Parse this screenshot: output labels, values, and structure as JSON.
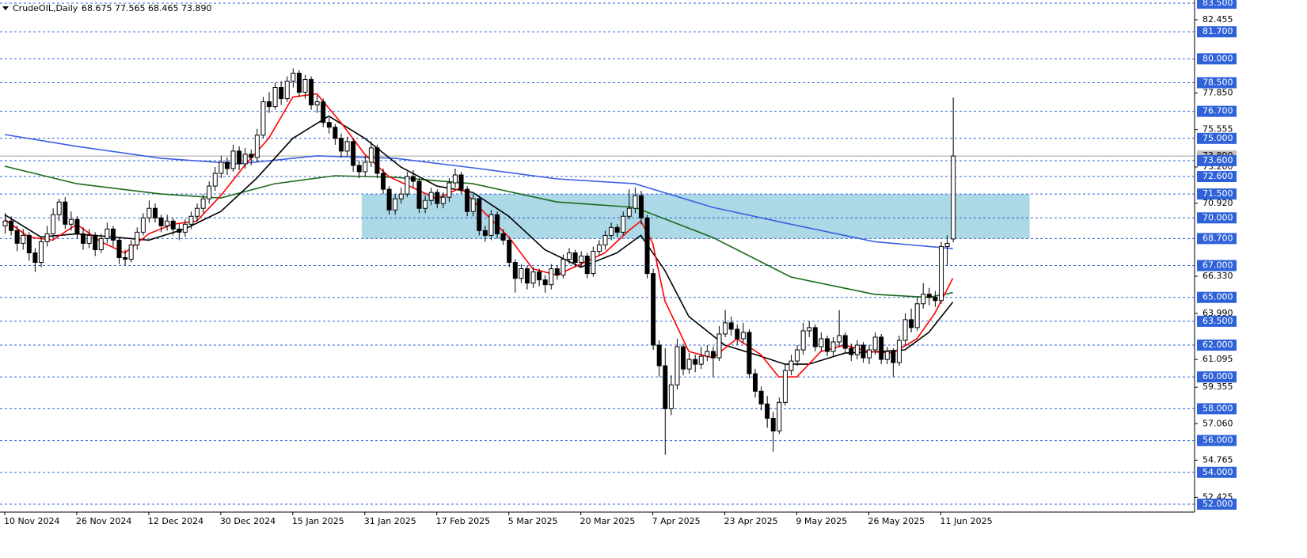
{
  "chart_data": {
    "type": "candlestick",
    "title": "CrudeOIL,Daily",
    "last_labels": [
      "68.675",
      "77.565",
      "68.465",
      "73.890"
    ],
    "ylim": [
      51.5,
      83.7
    ],
    "yticks": [
      {
        "value": 82.455,
        "label": "82.455"
      },
      {
        "value": 77.85,
        "label": "77.850"
      },
      {
        "value": 75.555,
        "label": "75.555"
      },
      {
        "value": 73.2,
        "label": "73.200"
      },
      {
        "value": 70.92,
        "label": "70.920"
      },
      {
        "value": 66.33,
        "label": "66.330"
      },
      {
        "value": 63.99,
        "label": "63.990"
      },
      {
        "value": 61.095,
        "label": "61.095"
      },
      {
        "value": 59.355,
        "label": "59.355"
      },
      {
        "value": 57.06,
        "label": "57.060"
      },
      {
        "value": 54.765,
        "label": "54.765"
      },
      {
        "value": 52.425,
        "label": "52.425"
      }
    ],
    "levels": [
      {
        "value": 83.5,
        "label": "83.500"
      },
      {
        "value": 81.7,
        "label": "81.700"
      },
      {
        "value": 80,
        "label": "80.000"
      },
      {
        "value": 78.5,
        "label": "78.500"
      },
      {
        "value": 76.7,
        "label": "76.700"
      },
      {
        "value": 75,
        "label": "75.000"
      },
      {
        "value": 73.6,
        "label": "73.600"
      },
      {
        "value": 72.6,
        "label": "72.600"
      },
      {
        "value": 71.5,
        "label": "71.500"
      },
      {
        "value": 70,
        "label": "70.000"
      },
      {
        "value": 68.7,
        "label": "68.700"
      },
      {
        "value": 67,
        "label": "67.000"
      },
      {
        "value": 65,
        "label": "65.000"
      },
      {
        "value": 63.5,
        "label": "63.500"
      },
      {
        "value": 62,
        "label": "62.000"
      },
      {
        "value": 60,
        "label": "60.000"
      },
      {
        "value": 58,
        "label": "58.000"
      },
      {
        "value": 56,
        "label": "56.000"
      },
      {
        "value": 54,
        "label": "54.000"
      },
      {
        "value": 52,
        "label": "52.000"
      }
    ],
    "level_color": "#2f62d9",
    "zone": {
      "x": [
        59.5,
        170.8
      ],
      "y": [
        68.7,
        71.5
      ],
      "color": "#add8e6"
    },
    "categories": [
      "10 Nov 2024",
      null,
      null,
      null,
      null,
      null,
      null,
      null,
      null,
      null,
      null,
      null,
      "26 Nov 2024",
      null,
      null,
      null,
      null,
      null,
      null,
      null,
      null,
      null,
      null,
      null,
      "12 Dec 2024",
      null,
      null,
      null,
      null,
      null,
      null,
      null,
      null,
      null,
      null,
      null,
      "30 Dec 2024",
      null,
      null,
      null,
      null,
      null,
      null,
      null,
      null,
      null,
      null,
      null,
      "15 Jan 2025",
      null,
      null,
      null,
      null,
      null,
      null,
      null,
      null,
      null,
      null,
      null,
      "31 Jan 2025",
      null,
      null,
      null,
      null,
      null,
      null,
      null,
      null,
      null,
      null,
      null,
      "17 Feb 2025",
      null,
      null,
      null,
      null,
      null,
      null,
      null,
      null,
      null,
      null,
      null,
      "5 Mar 2025",
      null,
      null,
      null,
      null,
      null,
      null,
      null,
      null,
      null,
      null,
      null,
      "20 Mar 2025",
      null,
      null,
      null,
      null,
      null,
      null,
      null,
      null,
      null,
      null,
      null,
      "7 Apr 2025",
      null,
      null,
      null,
      null,
      null,
      null,
      null,
      null,
      null,
      null,
      null,
      "23 Apr 2025",
      null,
      null,
      null,
      null,
      null,
      null,
      null,
      null,
      null,
      null,
      null,
      "9 May 2025",
      null,
      null,
      null,
      null,
      null,
      null,
      null,
      null,
      null,
      null,
      null,
      "26 May 2025",
      null,
      null,
      null,
      null,
      null,
      null,
      null,
      null,
      null,
      null,
      null,
      "11 Jun 2025",
      null,
      null
    ],
    "ohlc": [
      [
        69.5,
        70.3,
        69.0,
        69.8
      ],
      [
        69.8,
        70.1,
        68.9,
        69.2
      ],
      [
        69.2,
        69.5,
        67.9,
        68.4
      ],
      [
        68.4,
        69.3,
        68.0,
        68.9
      ],
      [
        68.9,
        69.1,
        67.3,
        67.8
      ],
      [
        67.8,
        68.1,
        66.6,
        67.2
      ],
      [
        67.2,
        68.8,
        66.9,
        68.5
      ],
      [
        68.5,
        69.5,
        68.2,
        69.0
      ],
      [
        69.0,
        70.6,
        68.7,
        70.2
      ],
      [
        70.2,
        71.2,
        69.8,
        71.0
      ],
      [
        71.0,
        71.3,
        69.3,
        69.6
      ],
      [
        69.6,
        70.4,
        69.2,
        69.9
      ],
      [
        69.9,
        70.1,
        68.7,
        69.0
      ],
      [
        69.0,
        69.4,
        68.0,
        68.4
      ],
      [
        68.4,
        69.3,
        68.1,
        68.9
      ],
      [
        68.9,
        69.1,
        67.6,
        68.0
      ],
      [
        68.0,
        69.0,
        67.8,
        68.7
      ],
      [
        68.7,
        69.7,
        68.4,
        69.3
      ],
      [
        69.3,
        69.5,
        68.2,
        68.6
      ],
      [
        68.6,
        68.8,
        67.1,
        67.5
      ],
      [
        67.5,
        68.0,
        67.0,
        67.4
      ],
      [
        67.4,
        68.6,
        67.2,
        68.3
      ],
      [
        68.3,
        69.4,
        68.0,
        69.1
      ],
      [
        69.1,
        70.3,
        68.9,
        70.0
      ],
      [
        70.0,
        71.1,
        69.7,
        70.6
      ],
      [
        70.6,
        70.9,
        69.7,
        70.0
      ],
      [
        70.0,
        70.2,
        69.1,
        69.5
      ],
      [
        69.5,
        70.2,
        69.2,
        69.8
      ],
      [
        69.8,
        70.0,
        68.9,
        69.3
      ],
      [
        69.3,
        69.6,
        68.6,
        69.1
      ],
      [
        69.1,
        69.9,
        68.8,
        69.6
      ],
      [
        69.6,
        70.4,
        69.3,
        70.1
      ],
      [
        70.1,
        70.9,
        69.8,
        70.6
      ],
      [
        70.6,
        71.5,
        70.3,
        71.2
      ],
      [
        71.2,
        72.3,
        70.9,
        72.0
      ],
      [
        72.0,
        73.2,
        71.7,
        72.8
      ],
      [
        72.8,
        73.9,
        72.5,
        73.5
      ],
      [
        73.5,
        73.8,
        72.7,
        73.1
      ],
      [
        73.1,
        74.6,
        72.9,
        74.2
      ],
      [
        74.2,
        74.5,
        73.0,
        73.4
      ],
      [
        73.4,
        74.4,
        73.1,
        74.0
      ],
      [
        74.0,
        74.3,
        73.3,
        73.8
      ],
      [
        73.8,
        75.6,
        73.5,
        75.2
      ],
      [
        75.2,
        77.6,
        75.0,
        77.3
      ],
      [
        77.3,
        77.9,
        76.6,
        77.0
      ],
      [
        77.0,
        78.5,
        76.8,
        78.2
      ],
      [
        78.2,
        78.6,
        77.1,
        77.5
      ],
      [
        77.5,
        78.9,
        77.3,
        78.6
      ],
      [
        78.6,
        79.4,
        78.2,
        79.1
      ],
      [
        79.1,
        79.3,
        77.6,
        77.9
      ],
      [
        77.9,
        79.0,
        77.5,
        78.7
      ],
      [
        78.7,
        78.9,
        76.8,
        77.1
      ],
      [
        77.1,
        77.7,
        76.6,
        77.3
      ],
      [
        77.3,
        77.5,
        75.7,
        76.0
      ],
      [
        76.0,
        76.3,
        75.3,
        75.7
      ],
      [
        75.7,
        75.9,
        74.6,
        75.0
      ],
      [
        75.0,
        75.3,
        73.8,
        74.2
      ],
      [
        74.2,
        75.1,
        73.9,
        74.8
      ],
      [
        74.8,
        75.0,
        72.9,
        73.3
      ],
      [
        73.3,
        73.6,
        72.5,
        72.9
      ],
      [
        72.9,
        73.9,
        72.6,
        73.5
      ],
      [
        73.5,
        74.8,
        73.2,
        74.4
      ],
      [
        74.4,
        74.6,
        72.5,
        72.8
      ],
      [
        72.8,
        73.1,
        71.5,
        71.8
      ],
      [
        71.8,
        72.0,
        70.2,
        70.5
      ],
      [
        70.5,
        71.5,
        70.2,
        71.2
      ],
      [
        71.2,
        71.9,
        70.9,
        71.5
      ],
      [
        71.5,
        72.9,
        71.3,
        72.6
      ],
      [
        72.6,
        73.0,
        71.9,
        72.3
      ],
      [
        72.3,
        72.5,
        70.3,
        70.6
      ],
      [
        70.6,
        71.4,
        70.3,
        71.1
      ],
      [
        71.1,
        71.9,
        70.8,
        71.6
      ],
      [
        71.6,
        71.8,
        70.6,
        70.9
      ],
      [
        70.9,
        71.6,
        70.6,
        71.3
      ],
      [
        71.3,
        72.5,
        71.0,
        72.2
      ],
      [
        72.2,
        73.1,
        71.9,
        72.7
      ],
      [
        72.7,
        72.9,
        71.5,
        71.8
      ],
      [
        71.8,
        72.0,
        70.1,
        70.4
      ],
      [
        70.4,
        71.5,
        70.1,
        71.2
      ],
      [
        71.2,
        71.4,
        68.9,
        69.2
      ],
      [
        69.2,
        69.5,
        68.5,
        68.9
      ],
      [
        68.9,
        70.5,
        68.6,
        70.2
      ],
      [
        70.2,
        70.4,
        68.7,
        69.0
      ],
      [
        69.0,
        69.3,
        68.3,
        68.6
      ],
      [
        68.6,
        68.8,
        66.9,
        67.2
      ],
      [
        67.2,
        67.4,
        65.3,
        66.2
      ],
      [
        66.2,
        67.1,
        65.9,
        66.8
      ],
      [
        66.8,
        67.0,
        65.5,
        65.9
      ],
      [
        65.9,
        66.9,
        65.6,
        66.6
      ],
      [
        66.6,
        66.8,
        65.7,
        66.1
      ],
      [
        66.1,
        66.4,
        65.3,
        65.8
      ],
      [
        65.8,
        67.1,
        65.5,
        66.8
      ],
      [
        66.8,
        67.0,
        66.1,
        66.4
      ],
      [
        66.4,
        67.7,
        66.2,
        67.4
      ],
      [
        67.4,
        68.1,
        67.1,
        67.8
      ],
      [
        67.8,
        68.0,
        66.9,
        67.2
      ],
      [
        67.2,
        67.9,
        66.9,
        67.6
      ],
      [
        67.6,
        67.8,
        66.2,
        66.5
      ],
      [
        66.5,
        68.2,
        66.3,
        67.9
      ],
      [
        67.9,
        68.6,
        67.6,
        68.3
      ],
      [
        68.3,
        69.2,
        68.0,
        68.9
      ],
      [
        68.9,
        69.7,
        68.6,
        69.4
      ],
      [
        69.4,
        69.6,
        68.8,
        69.1
      ],
      [
        69.1,
        70.4,
        68.9,
        70.1
      ],
      [
        70.1,
        71.8,
        69.9,
        70.6
      ],
      [
        70.6,
        71.9,
        70.3,
        71.4
      ],
      [
        71.4,
        71.7,
        69.6,
        70.0
      ],
      [
        70.0,
        70.2,
        66.2,
        66.5
      ],
      [
        66.5,
        66.8,
        61.7,
        62.0
      ],
      [
        62.0,
        62.3,
        60.0,
        60.7
      ],
      [
        60.7,
        61.8,
        55.1,
        58.0
      ],
      [
        58.0,
        60.1,
        57.6,
        59.5
      ],
      [
        59.5,
        62.4,
        59.2,
        61.9
      ],
      [
        61.9,
        62.1,
        60.1,
        60.5
      ],
      [
        60.5,
        61.5,
        60.2,
        61.1
      ],
      [
        61.1,
        61.4,
        60.3,
        60.8
      ],
      [
        60.8,
        61.9,
        60.5,
        61.3
      ],
      [
        61.3,
        62.0,
        61.0,
        61.6
      ],
      [
        61.6,
        61.9,
        60.0,
        61.2
      ],
      [
        61.2,
        63.2,
        61.0,
        62.7
      ],
      [
        62.7,
        64.2,
        62.5,
        63.4
      ],
      [
        63.4,
        63.8,
        62.6,
        63.0
      ],
      [
        63.0,
        63.3,
        62.0,
        62.4
      ],
      [
        62.4,
        63.4,
        62.1,
        62.8
      ],
      [
        62.8,
        63.0,
        59.9,
        60.2
      ],
      [
        60.2,
        60.5,
        58.7,
        59.1
      ],
      [
        59.1,
        59.4,
        57.9,
        58.3
      ],
      [
        58.3,
        58.8,
        56.8,
        57.4
      ],
      [
        57.4,
        57.8,
        55.3,
        56.6
      ],
      [
        56.6,
        58.7,
        56.4,
        58.4
      ],
      [
        58.4,
        60.8,
        58.2,
        60.4
      ],
      [
        60.4,
        61.4,
        60.1,
        61.0
      ],
      [
        61.0,
        62.0,
        60.7,
        61.7
      ],
      [
        61.7,
        63.4,
        61.4,
        62.9
      ],
      [
        62.9,
        63.5,
        62.5,
        63.1
      ],
      [
        63.1,
        63.3,
        61.6,
        61.9
      ],
      [
        61.9,
        62.8,
        61.6,
        62.4
      ],
      [
        62.4,
        62.6,
        61.3,
        61.6
      ],
      [
        61.6,
        62.5,
        61.3,
        62.2
      ],
      [
        62.2,
        64.2,
        61.9,
        62.6
      ],
      [
        62.6,
        62.8,
        61.5,
        61.8
      ],
      [
        61.8,
        62.1,
        61.0,
        61.4
      ],
      [
        61.4,
        62.3,
        61.1,
        62.0
      ],
      [
        62.0,
        62.2,
        60.9,
        61.2
      ],
      [
        61.2,
        62.0,
        60.8,
        61.7
      ],
      [
        61.7,
        62.8,
        61.4,
        62.5
      ],
      [
        62.5,
        62.7,
        60.8,
        61.1
      ],
      [
        61.1,
        61.9,
        60.8,
        61.6
      ],
      [
        61.6,
        61.8,
        60.0,
        60.9
      ],
      [
        60.9,
        62.6,
        60.7,
        62.3
      ],
      [
        62.3,
        64.0,
        62.0,
        63.6
      ],
      [
        63.6,
        64.3,
        62.8,
        63.1
      ],
      [
        63.1,
        65.0,
        62.9,
        64.6
      ],
      [
        64.6,
        65.9,
        64.3,
        65.2
      ],
      [
        65.2,
        65.6,
        64.5,
        65.0
      ],
      [
        65.0,
        65.4,
        64.4,
        64.8
      ],
      [
        64.8,
        68.5,
        64.6,
        68.2
      ],
      [
        68.2,
        68.9,
        67.0,
        68.4
      ],
      [
        68.675,
        77.565,
        68.465,
        73.89
      ]
    ],
    "lines": [
      {
        "color": "#3a5fe0",
        "x": [
          0,
          12,
          26,
          39,
          52,
          65,
          78,
          92,
          105,
          118,
          131,
          145,
          158
        ],
        "values": [
          75.24,
          74.5,
          73.75,
          73.4,
          73.9,
          73.75,
          73.15,
          72.45,
          72.15,
          70.66,
          69.6,
          68.5,
          68.07
        ]
      },
      {
        "color": "#1a6b1a",
        "x": [
          0,
          12,
          26,
          36,
          45,
          55,
          65,
          78,
          92,
          105,
          118,
          131,
          145,
          154,
          158
        ],
        "values": [
          73.25,
          72.15,
          71.5,
          71.25,
          72.15,
          72.65,
          72.55,
          72.15,
          71.0,
          70.66,
          68.77,
          66.28,
          65.19,
          65.0,
          65.3
        ]
      },
      {
        "color": "#000000",
        "x": [
          0,
          6,
          12,
          18,
          24,
          30,
          36,
          42,
          48,
          54,
          60,
          66,
          72,
          78,
          84,
          90,
          96,
          102,
          106,
          110,
          114,
          120,
          126,
          130,
          134,
          140,
          146,
          150,
          154,
          158
        ],
        "values": [
          70.2,
          68.8,
          69.0,
          68.8,
          68.6,
          69.3,
          70.4,
          72.5,
          75.0,
          76.4,
          75.0,
          73.2,
          72.0,
          71.6,
          70.1,
          68.0,
          66.9,
          67.8,
          68.9,
          66.7,
          63.8,
          62.0,
          61.3,
          60.8,
          60.8,
          61.5,
          61.6,
          61.7,
          62.8,
          64.7
        ]
      },
      {
        "color": "#ff0000",
        "x": [
          0,
          4,
          8,
          12,
          16,
          20,
          24,
          28,
          32,
          36,
          40,
          44,
          48,
          52,
          56,
          60,
          64,
          68,
          72,
          76,
          80,
          84,
          88,
          92,
          96,
          100,
          104,
          106,
          108,
          110,
          114,
          118,
          122,
          126,
          129,
          132,
          136,
          140,
          144,
          148,
          152,
          155,
          158
        ],
        "values": [
          69.9,
          68.8,
          68.6,
          69.6,
          68.5,
          67.8,
          69.0,
          69.6,
          69.8,
          71.4,
          73.3,
          75.0,
          77.6,
          77.8,
          76.0,
          74.0,
          72.6,
          71.9,
          71.2,
          71.9,
          70.3,
          68.8,
          66.8,
          66.4,
          67.1,
          67.8,
          69.2,
          69.8,
          68.4,
          64.8,
          61.6,
          61.2,
          62.4,
          61.4,
          60.0,
          60.0,
          61.6,
          62.0,
          61.6,
          61.5,
          62.4,
          64.0,
          66.2
        ]
      }
    ]
  }
}
